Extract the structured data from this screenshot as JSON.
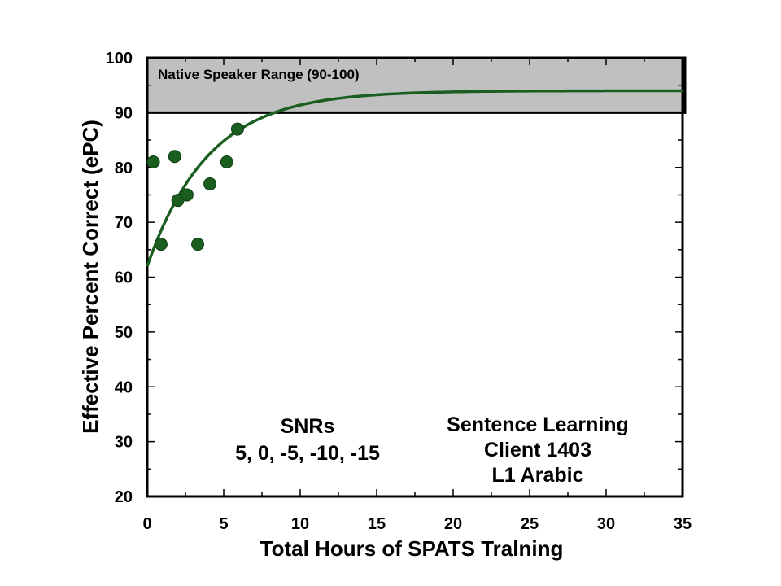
{
  "chart_data": {
    "type": "scatter",
    "title": "",
    "xlabel": "Total Hours of SPATS Tralning",
    "ylabel": "Effective Percent Correct (ePC)",
    "xlim": [
      0,
      35
    ],
    "ylim": [
      20,
      100
    ],
    "x_ticks": [
      0,
      5,
      10,
      15,
      20,
      25,
      30,
      35
    ],
    "y_ticks": [
      20,
      30,
      40,
      50,
      60,
      70,
      80,
      90,
      100
    ],
    "grid": false,
    "band": {
      "label": "Native Speaker Range (90-100)",
      "from": 90,
      "to": 100,
      "color": "#c0c0c0"
    },
    "points": [
      {
        "x": 0.4,
        "y": 81
      },
      {
        "x": 0.9,
        "y": 66
      },
      {
        "x": 1.8,
        "y": 82
      },
      {
        "x": 2.0,
        "y": 74
      },
      {
        "x": 2.6,
        "y": 75
      },
      {
        "x": 3.3,
        "y": 66
      },
      {
        "x": 4.1,
        "y": 77
      },
      {
        "x": 5.2,
        "y": 81
      },
      {
        "x": 5.9,
        "y": 87
      }
    ],
    "fit": {
      "model": "exponential",
      "y0": 62,
      "asymptote": 94,
      "rate": 0.25,
      "x_range": [
        0,
        35
      ]
    },
    "series_color": "#1a5e20",
    "annotations": {
      "snr": [
        "SNRs",
        "5, 0, -5, -10, -15"
      ],
      "client": [
        "Sentence Learning",
        "Client 1403",
        "L1 Arabic"
      ]
    }
  }
}
